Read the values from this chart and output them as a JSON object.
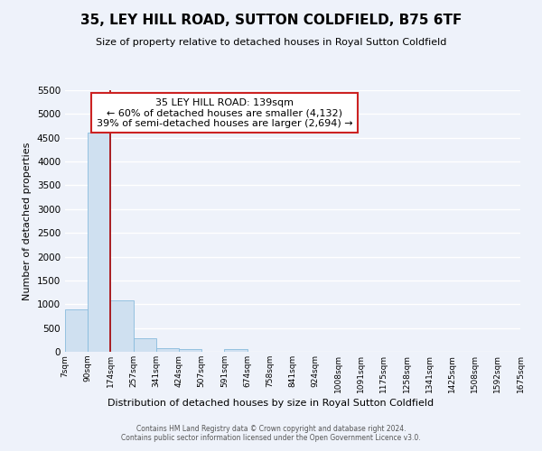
{
  "title": "35, LEY HILL ROAD, SUTTON COLDFIELD, B75 6TF",
  "subtitle": "Size of property relative to detached houses in Royal Sutton Coldfield",
  "xlabel": "Distribution of detached houses by size in Royal Sutton Coldfield",
  "ylabel": "Number of detached properties",
  "bar_values": [
    900,
    4600,
    1080,
    290,
    80,
    65,
    0,
    50,
    0,
    0,
    0,
    0,
    0,
    0,
    0,
    0,
    0,
    0,
    0,
    0
  ],
  "bar_labels": [
    "7sqm",
    "90sqm",
    "174sqm",
    "257sqm",
    "341sqm",
    "424sqm",
    "507sqm",
    "591sqm",
    "674sqm",
    "758sqm",
    "841sqm",
    "924sqm",
    "1008sqm",
    "1091sqm",
    "1175sqm",
    "1258sqm",
    "1341sqm",
    "1425sqm",
    "1508sqm",
    "1592sqm",
    "1675sqm"
  ],
  "bar_color": "#cfe0f0",
  "bar_edge_color": "#88bbdd",
  "vline_color": "#aa0000",
  "vline_x_bar_index": 1.5,
  "vline_linewidth": 1.2,
  "ylim": [
    0,
    5500
  ],
  "yticks": [
    0,
    500,
    1000,
    1500,
    2000,
    2500,
    3000,
    3500,
    4000,
    4500,
    5000,
    5500
  ],
  "annotation_title": "35 LEY HILL ROAD: 139sqm",
  "annotation_line1": "← 60% of detached houses are smaller (4,132)",
  "annotation_line2": "39% of semi-detached houses are larger (2,694) →",
  "annotation_box_color": "white",
  "annotation_box_edge": "#cc2222",
  "footer_line1": "Contains HM Land Registry data © Crown copyright and database right 2024.",
  "footer_line2": "Contains public sector information licensed under the Open Government Licence v3.0.",
  "background_color": "#eef2fa",
  "grid_color": "white"
}
